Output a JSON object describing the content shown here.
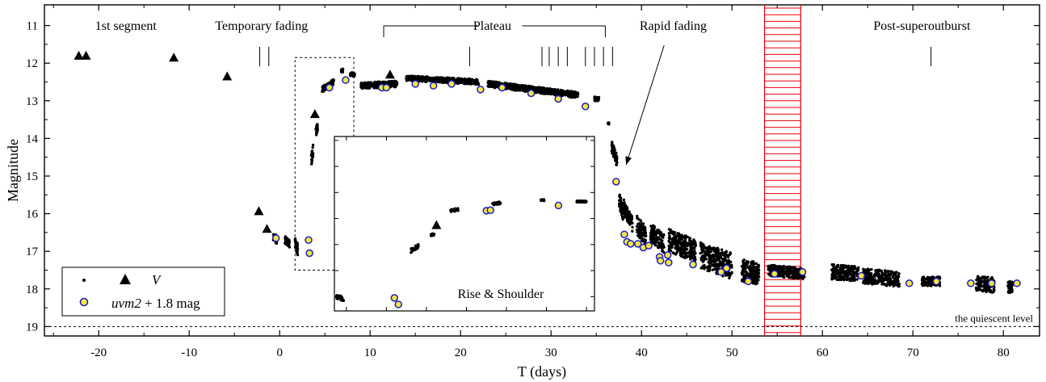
{
  "chart_data": {
    "type": "scatter",
    "xlabel": "T (days)",
    "ylabel": "Magnitude",
    "xlim": [
      -26,
      84
    ],
    "ylim": [
      19.25,
      10.45
    ],
    "y_inverted": true,
    "xticks": [
      -20,
      -10,
      0,
      10,
      20,
      30,
      40,
      50,
      60,
      70,
      80
    ],
    "yticks": [
      11,
      12,
      13,
      14,
      15,
      16,
      17,
      18,
      19
    ],
    "legend": {
      "position": "bottom-left",
      "v_label": "V",
      "uvm2_label_italic": "uvm2",
      "uvm2_label_rest": " + 1.8 mag"
    },
    "phases": [
      {
        "label": "1st segment",
        "x": -17
      },
      {
        "label": "Temporary fading",
        "x": -2
      },
      {
        "label": "Plateau",
        "x": 23.5
      },
      {
        "label": "Rapid fading",
        "x": 43.5
      },
      {
        "label": "Post-superoutburst",
        "x": 71
      }
    ],
    "plateau_span": [
      11.5,
      36
    ],
    "phase_ticks": [
      -2.2,
      -1.2,
      21,
      29,
      29.8,
      30.8,
      31.8,
      33.8,
      34.8,
      35.8,
      36.8,
      72
    ],
    "annotation": {
      "label": "Rapid fading",
      "from": [
        42.5,
        11.1
      ],
      "to": [
        38.3,
        14.7
      ]
    },
    "hatched_band": {
      "x": [
        53.6,
        57.6
      ],
      "color": "#e8000b"
    },
    "quiescent_level": {
      "y": 19.0,
      "label": "the quiescent level"
    },
    "zoom_box": {
      "x": [
        1.7,
        8.2
      ],
      "y": [
        11.85,
        17.5
      ]
    },
    "inset": {
      "label": "Rise  & Shoulder"
    },
    "colors": {
      "v_marker": "#000000",
      "uvm2_fill": "#f2e640",
      "uvm2_edge": "#1e1ec8",
      "hatch": "#e8000b"
    },
    "series": [
      {
        "name": "V",
        "marker": "triangle",
        "points": [
          [
            -22.2,
            11.8
          ],
          [
            -21.4,
            11.8
          ],
          [
            -11.7,
            11.85
          ],
          [
            -5.8,
            12.35
          ],
          [
            -2.3,
            15.93
          ],
          [
            -1.4,
            16.4
          ],
          [
            3.9,
            13.35
          ],
          [
            12.2,
            12.3
          ]
        ]
      },
      {
        "name": "V (dense photometry)",
        "marker": "dot",
        "segments": [
          {
            "x": [
              -0.7,
              -0.3
            ],
            "mag": [
              16.6,
              16.7
            ],
            "scatter": 0.12
          },
          {
            "x": [
              0.6,
              1.1
            ],
            "mag": [
              16.7,
              16.8
            ],
            "scatter": 0.1
          },
          {
            "x": [
              1.7,
              2.0
            ],
            "mag": [
              16.8,
              16.95
            ],
            "scatter": 0.15
          },
          {
            "x": [
              3.5,
              3.7
            ],
            "mag": [
              14.6,
              14.3
            ],
            "scatter": 0.15
          },
          {
            "x": [
              4.0,
              4.2
            ],
            "mag": [
              13.85,
              13.7
            ],
            "scatter": 0.12
          },
          {
            "x": [
              4.7,
              6.0
            ],
            "mag": [
              12.7,
              12.5
            ],
            "scatter": 0.08
          },
          {
            "x": [
              6.8,
              7.0
            ],
            "mag": [
              12.2,
              12.2
            ],
            "scatter": 0.05
          },
          {
            "x": [
              7.8,
              8.3
            ],
            "mag": [
              12.3,
              12.3
            ],
            "scatter": 0.05
          },
          {
            "x": [
              9.0,
              13.0
            ],
            "mag": [
              12.6,
              12.55
            ],
            "scatter": 0.08
          },
          {
            "x": [
              14.0,
              22.0
            ],
            "mag": [
              12.4,
              12.5
            ],
            "scatter": 0.07
          },
          {
            "x": [
              23.0,
              33.0
            ],
            "mag": [
              12.55,
              12.85
            ],
            "scatter": 0.08
          },
          {
            "x": [
              34.8,
              35.3
            ],
            "mag": [
              12.95,
              12.95
            ],
            "scatter": 0.06
          },
          {
            "x": [
              36.3,
              36.4
            ],
            "mag": [
              13.6,
              13.6
            ],
            "scatter": 0.02
          },
          {
            "x": [
              36.7,
              37.3
            ],
            "mag": [
              14.2,
              14.6
            ],
            "scatter": 0.15
          },
          {
            "x": [
              37.5,
              38.0
            ],
            "mag": [
              15.6,
              16.0
            ],
            "scatter": 0.2
          },
          {
            "x": [
              38.0,
              39.0
            ],
            "mag": [
              15.8,
              16.3
            ],
            "scatter": 0.2
          },
          {
            "x": [
              39.5,
              40.5
            ],
            "mag": [
              16.3,
              16.6
            ],
            "scatter": 0.25
          },
          {
            "x": [
              41.0,
              42.5
            ],
            "mag": [
              16.5,
              16.8
            ],
            "scatter": 0.25
          },
          {
            "x": [
              43.0,
              46.0
            ],
            "mag": [
              16.7,
              17.0
            ],
            "scatter": 0.3
          },
          {
            "x": [
              46.5,
              50.0
            ],
            "mag": [
              17.1,
              17.4
            ],
            "scatter": 0.35
          },
          {
            "x": [
              51.0,
              53.0
            ],
            "mag": [
              17.5,
              17.6
            ],
            "scatter": 0.3
          },
          {
            "x": [
              54.0,
              58.0
            ],
            "mag": [
              17.5,
              17.6
            ],
            "scatter": 0.15
          },
          {
            "x": [
              61.0,
              64.0
            ],
            "mag": [
              17.55,
              17.6
            ],
            "scatter": 0.2
          },
          {
            "x": [
              64.5,
              68.5
            ],
            "mag": [
              17.65,
              17.75
            ],
            "scatter": 0.2
          },
          {
            "x": [
              71.0,
              73.0
            ],
            "mag": [
              17.8,
              17.8
            ],
            "scatter": 0.12
          },
          {
            "x": [
              77.0,
              79.0
            ],
            "mag": [
              17.85,
              17.9
            ],
            "scatter": 0.2
          },
          {
            "x": [
              80.5,
              81.0
            ],
            "mag": [
              17.95,
              17.95
            ],
            "scatter": 0.15
          }
        ]
      },
      {
        "name": "uvm2 + 1.8 mag",
        "marker": "circle",
        "points": [
          [
            -0.4,
            16.65
          ],
          [
            3.2,
            16.7
          ],
          [
            3.3,
            17.05
          ],
          [
            5.5,
            12.65
          ],
          [
            7.3,
            12.45
          ],
          [
            11.3,
            12.65
          ],
          [
            11.8,
            12.65
          ],
          [
            15.0,
            12.55
          ],
          [
            17.0,
            12.6
          ],
          [
            19.0,
            12.55
          ],
          [
            22.2,
            12.7
          ],
          [
            24.6,
            12.65
          ],
          [
            27.8,
            12.8
          ],
          [
            30.8,
            12.95
          ],
          [
            33.8,
            13.15
          ],
          [
            37.2,
            15.15
          ],
          [
            38.1,
            16.55
          ],
          [
            38.4,
            16.75
          ],
          [
            38.8,
            16.8
          ],
          [
            39.6,
            16.8
          ],
          [
            40.2,
            16.9
          ],
          [
            40.8,
            16.85
          ],
          [
            42.0,
            17.15
          ],
          [
            42.1,
            17.25
          ],
          [
            42.9,
            17.1
          ],
          [
            43.0,
            17.3
          ],
          [
            45.7,
            17.35
          ],
          [
            48.8,
            17.55
          ],
          [
            49.4,
            17.45
          ],
          [
            51.8,
            17.8
          ],
          [
            54.7,
            17.6
          ],
          [
            57.8,
            17.55
          ],
          [
            64.3,
            17.65
          ],
          [
            69.6,
            17.85
          ],
          [
            72.6,
            17.8
          ],
          [
            76.4,
            17.85
          ],
          [
            78.7,
            17.85
          ],
          [
            81.5,
            17.85
          ]
        ]
      }
    ],
    "inset_data": {
      "xlim": [
        1.7,
        8.2
      ],
      "ylim": [
        18.55,
        11.85
      ],
      "v_dots": [
        {
          "x": [
            1.75,
            1.95
          ],
          "mag": [
            18.0,
            18.1
          ],
          "scatter": 0.08
        },
        {
          "x": [
            3.6,
            3.8
          ],
          "mag": [
            16.25,
            16.05
          ],
          "scatter": 0.08
        },
        {
          "x": [
            4.1,
            4.2
          ],
          "mag": [
            15.65,
            15.6
          ],
          "scatter": 0.05
        },
        {
          "x": [
            4.6,
            4.8
          ],
          "mag": [
            14.7,
            14.65
          ],
          "scatter": 0.05
        },
        {
          "x": [
            5.65,
            5.85
          ],
          "mag": [
            14.45,
            14.4
          ],
          "scatter": 0.05
        },
        {
          "x": [
            6.85,
            6.95
          ],
          "mag": [
            14.3,
            14.3
          ],
          "scatter": 0.03
        },
        {
          "x": [
            7.75,
            8.0
          ],
          "mag": [
            14.35,
            14.35
          ],
          "scatter": 0.03
        }
      ],
      "v_triangles": [
        [
          4.25,
          15.25
        ]
      ],
      "uvm2": [
        [
          3.2,
          18.05
        ],
        [
          3.3,
          18.3
        ],
        [
          5.5,
          14.7
        ],
        [
          5.6,
          14.68
        ],
        [
          7.3,
          14.5
        ]
      ]
    }
  }
}
